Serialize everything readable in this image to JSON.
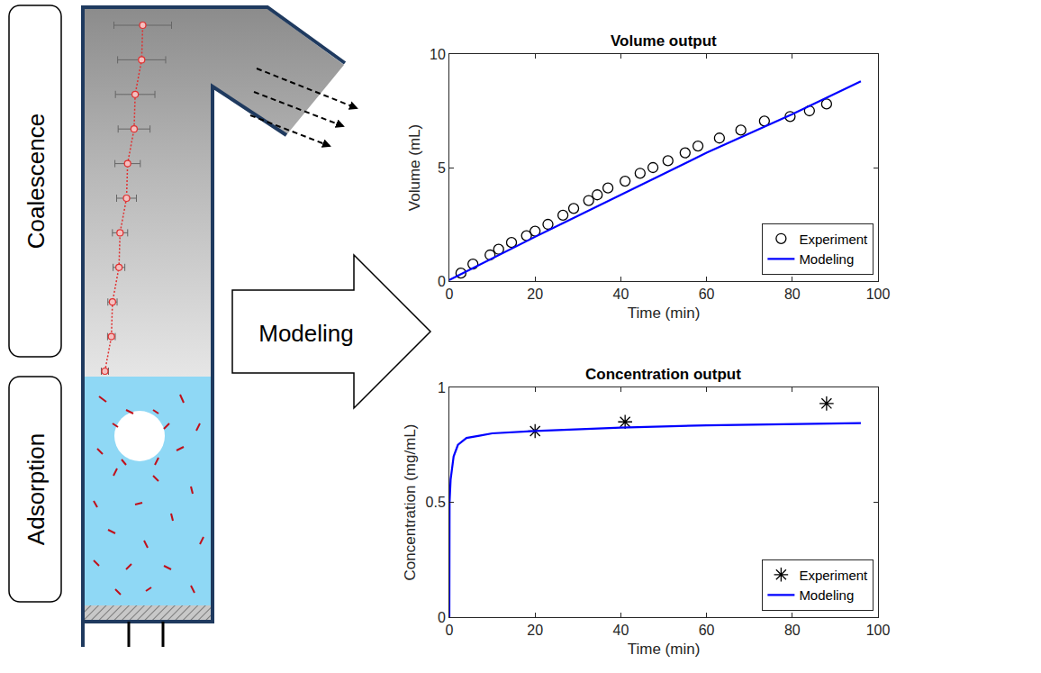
{
  "diagram": {
    "upper_label": "Coalescence",
    "lower_label": "Adsorption",
    "arrow_label": "Modeling"
  },
  "chart_data": [
    {
      "type": "line",
      "title": "Volume output",
      "x_label": "Time (min)",
      "y_label": "Volume (mL)",
      "xlim": [
        0,
        100
      ],
      "xticks": [
        0,
        20,
        40,
        60,
        80,
        100
      ],
      "ylim": [
        0,
        10
      ],
      "yticks": [
        0,
        5,
        10
      ],
      "grid": false,
      "legend": "lower right",
      "series": [
        {
          "name": "Experiment",
          "type": "scatter",
          "marker": "circle",
          "color": "#000000",
          "x": [
            2.7,
            5.5,
            9.5,
            11.5,
            14.5,
            18,
            20,
            23,
            26.5,
            29,
            32.5,
            34.5,
            37,
            41,
            44.5,
            47.5,
            51,
            55,
            58,
            63,
            68,
            73.5,
            79.5,
            84,
            88
          ],
          "values": [
            0.35,
            0.75,
            1.15,
            1.4,
            1.7,
            2.0,
            2.2,
            2.5,
            2.9,
            3.2,
            3.55,
            3.8,
            4.1,
            4.4,
            4.75,
            5.0,
            5.3,
            5.65,
            5.95,
            6.3,
            6.65,
            7.05,
            7.25,
            7.5,
            7.8
          ]
        },
        {
          "name": "Modeling",
          "type": "line",
          "line_style": "solid",
          "color": "#0000ff",
          "x": [
            0,
            20,
            40,
            60,
            80,
            96
          ],
          "values": [
            0.05,
            1.95,
            3.8,
            5.65,
            7.35,
            8.8
          ]
        }
      ]
    },
    {
      "type": "line",
      "title": "Concentration output",
      "x_label": "Time (min)",
      "y_label": "Concentration (mg/mL)",
      "xlim": [
        0,
        100
      ],
      "xticks": [
        0,
        20,
        40,
        60,
        80,
        100
      ],
      "ylim": [
        0,
        1
      ],
      "yticks": [
        0,
        0.5,
        1
      ],
      "grid": false,
      "legend": "lower right",
      "series": [
        {
          "name": "Experiment",
          "type": "scatter",
          "marker": "asterisk",
          "color": "#000000",
          "x": [
            20,
            41,
            88
          ],
          "values": [
            0.81,
            0.85,
            0.93
          ]
        },
        {
          "name": "Modeling",
          "type": "line",
          "line_style": "solid",
          "color": "#0000ff",
          "x": [
            0,
            0.05,
            0.3,
            1,
            2,
            4,
            7,
            10,
            20,
            40,
            60,
            80,
            96
          ],
          "values": [
            0,
            0.5,
            0.6,
            0.7,
            0.75,
            0.78,
            0.79,
            0.8,
            0.81,
            0.825,
            0.835,
            0.84,
            0.845
          ]
        }
      ]
    }
  ]
}
